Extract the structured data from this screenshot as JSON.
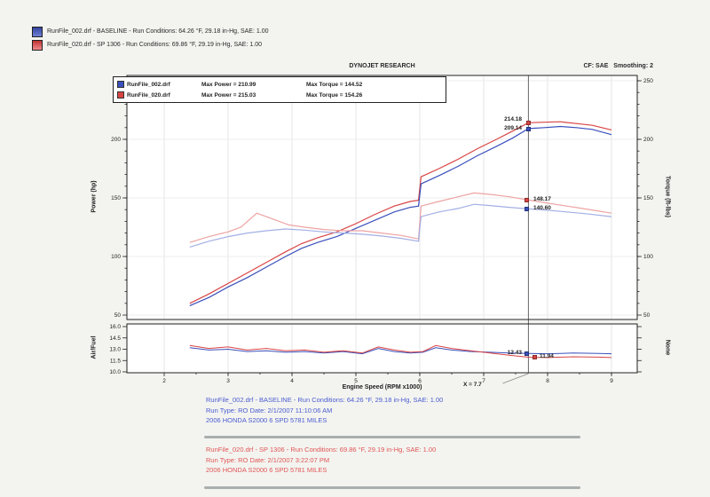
{
  "header": {
    "brand": "DYNOJET RESEARCH",
    "cf": "CF: SAE",
    "smoothing": "Smoothing: 2"
  },
  "page_legend": [
    {
      "color": "#3a50bb",
      "label": "RunFile_002.drf - BASELINE  -  Run Conditions: 64.26 °F, 29.18 in-Hg, SAE: 1.00"
    },
    {
      "color": "#d84444",
      "label": "RunFile_020.drf - SP 1306  -  Run Conditions: 69.86 °F, 29.19 in-Hg, SAE: 1.00"
    }
  ],
  "chart_legend": [
    {
      "file": "RunFile_002.drf",
      "power": "Max Power = 210.99",
      "torque": "Max Torque = 144.52"
    },
    {
      "file": "RunFile_020.drf",
      "power": "Max Power = 215.03",
      "torque": "Max Torque = 154.26"
    }
  ],
  "axis_titles": {
    "power": "Power (hp)",
    "torque": "Torque (ft-lbs)",
    "afr": "Air/Fuel",
    "none": "None",
    "x": "Engine Speed (RPM x1000)"
  },
  "cursor": {
    "label": "X = 7.7",
    "rpm": 7.7,
    "power_red": "214.18",
    "power_blue": "209.14",
    "torque_red": "148.17",
    "torque_blue": "140.60",
    "afr_blue": "12.43",
    "afr_red": "11.94"
  },
  "footer": {
    "blue": [
      "RunFile_002.drf - BASELINE  -  Run Conditions: 64.26 °F, 29.18 in-Hg, SAE: 1.00",
      "Run Type: RO  Date: 2/1/2007 11:10:06 AM",
      "2006 HONDA S2000 6 SPD 5781 MILES"
    ],
    "red": [
      "RunFile_020.drf - SP 1306  -  Run Conditions: 69.86 °F, 29.19 in-Hg, SAE: 1.00",
      "Run Type: RO  Date: 2/1/2007 3:22:07 PM",
      "2006 HONDA S2000 6 SPD 5781 MILES"
    ]
  },
  "chart_data": [
    {
      "type": "line",
      "title": "DYNOJET RESEARCH",
      "xlabel": "Engine Speed (RPM x1000)",
      "ylabel_left": "Power (hp)",
      "ylabel_right": "Torque (ft-lbs)",
      "xlim": [
        1.4,
        9.95
      ],
      "ylim": [
        50,
        255
      ],
      "x_ticks": [
        2,
        3,
        4,
        5,
        6,
        7,
        8,
        9
      ],
      "y_ticks_left": [
        200,
        150,
        100,
        50
      ],
      "y_ticks_right": [
        250,
        200,
        150,
        100,
        50
      ],
      "grid": true,
      "legend_position": "top-left",
      "cursor_x": 7.7,
      "series": [
        {
          "name": "RunFile_020 Power (hp)",
          "color": "#d84444",
          "points": [
            [
              2.4,
              60
            ],
            [
              2.7,
              68
            ],
            [
              3.0,
              77
            ],
            [
              3.3,
              86
            ],
            [
              3.6,
              95
            ],
            [
              3.9,
              104
            ],
            [
              4.15,
              111
            ],
            [
              4.4,
              116
            ],
            [
              4.7,
              121
            ],
            [
              5.0,
              128
            ],
            [
              5.3,
              136
            ],
            [
              5.6,
              143
            ],
            [
              5.85,
              147
            ],
            [
              5.98,
              148
            ],
            [
              6.02,
              168
            ],
            [
              6.3,
              175
            ],
            [
              6.6,
              183
            ],
            [
              6.9,
              192
            ],
            [
              7.2,
              200
            ],
            [
              7.45,
              207
            ],
            [
              7.7,
              214.18
            ],
            [
              7.95,
              214.6
            ],
            [
              8.2,
              215.03
            ],
            [
              8.45,
              213.5
            ],
            [
              8.7,
              212
            ],
            [
              9.0,
              208
            ]
          ]
        },
        {
          "name": "RunFile_002 Power (hp)",
          "color": "#3a50bb",
          "points": [
            [
              2.4,
              58
            ],
            [
              2.7,
              65
            ],
            [
              3.0,
              74
            ],
            [
              3.3,
              82
            ],
            [
              3.6,
              91
            ],
            [
              3.9,
              100
            ],
            [
              4.15,
              107
            ],
            [
              4.4,
              112
            ],
            [
              4.7,
              117
            ],
            [
              5.0,
              124
            ],
            [
              5.3,
              131
            ],
            [
              5.6,
              138
            ],
            [
              5.85,
              142
            ],
            [
              5.98,
              143
            ],
            [
              6.02,
              162
            ],
            [
              6.3,
              169
            ],
            [
              6.6,
              177
            ],
            [
              6.9,
              186
            ],
            [
              7.2,
              194
            ],
            [
              7.45,
              201
            ],
            [
              7.7,
              209.14
            ],
            [
              7.95,
              210
            ],
            [
              8.2,
              210.99
            ],
            [
              8.45,
              210
            ],
            [
              8.7,
              208.5
            ],
            [
              9.0,
              204
            ]
          ]
        },
        {
          "name": "RunFile_020 Torque (ft-lbs)",
          "color": "#eda3a3",
          "points": [
            [
              2.4,
              112
            ],
            [
              2.7,
              117
            ],
            [
              3.0,
              121
            ],
            [
              3.2,
              125
            ],
            [
              3.45,
              137
            ],
            [
              3.7,
              132
            ],
            [
              3.95,
              127
            ],
            [
              4.2,
              125
            ],
            [
              4.5,
              123
            ],
            [
              4.8,
              122
            ],
            [
              5.1,
              122
            ],
            [
              5.4,
              120
            ],
            [
              5.7,
              118
            ],
            [
              5.98,
              115
            ],
            [
              6.02,
              143
            ],
            [
              6.3,
              147
            ],
            [
              6.6,
              151
            ],
            [
              6.85,
              154.26
            ],
            [
              7.1,
              153
            ],
            [
              7.4,
              151
            ],
            [
              7.7,
              148.17
            ],
            [
              8.0,
              145.5
            ],
            [
              8.3,
              143
            ],
            [
              8.6,
              140.5
            ],
            [
              9.0,
              137
            ]
          ]
        },
        {
          "name": "RunFile_002 Torque (ft-lbs)",
          "color": "#a3afe4",
          "points": [
            [
              2.4,
              108
            ],
            [
              2.7,
              113
            ],
            [
              3.0,
              117
            ],
            [
              3.3,
              120
            ],
            [
              3.6,
              122
            ],
            [
              3.9,
              123.5
            ],
            [
              4.2,
              122.5
            ],
            [
              4.5,
              121
            ],
            [
              4.8,
              120
            ],
            [
              5.1,
              119
            ],
            [
              5.4,
              117.5
            ],
            [
              5.7,
              115.5
            ],
            [
              5.98,
              113
            ],
            [
              6.02,
              134
            ],
            [
              6.3,
              138
            ],
            [
              6.6,
              141
            ],
            [
              6.85,
              144.52
            ],
            [
              7.1,
              143.5
            ],
            [
              7.4,
              142
            ],
            [
              7.7,
              140.6
            ],
            [
              8.0,
              139.5
            ],
            [
              8.3,
              138
            ],
            [
              8.6,
              136.5
            ],
            [
              9.0,
              134
            ]
          ]
        }
      ]
    },
    {
      "type": "line",
      "ylabel_left": "Air/Fuel",
      "ylabel_right": "None",
      "xlim": [
        1.4,
        9.95
      ],
      "ylim": [
        10,
        16
      ],
      "y_ticks_left": [
        16.0,
        14.5,
        13.0,
        11.5,
        10.0
      ],
      "grid": true,
      "series": [
        {
          "name": "RunFile_002 Air/Fuel",
          "color": "#3a50bb",
          "points": [
            [
              2.4,
              13.2
            ],
            [
              2.7,
              12.9
            ],
            [
              3.0,
              13.0
            ],
            [
              3.3,
              12.7
            ],
            [
              3.6,
              12.8
            ],
            [
              3.9,
              12.6
            ],
            [
              4.2,
              12.7
            ],
            [
              4.5,
              12.5
            ],
            [
              4.8,
              12.7
            ],
            [
              5.1,
              12.4
            ],
            [
              5.35,
              13.1
            ],
            [
              5.6,
              12.7
            ],
            [
              5.85,
              12.5
            ],
            [
              6.05,
              12.6
            ],
            [
              6.25,
              13.2
            ],
            [
              6.5,
              12.9
            ],
            [
              6.8,
              12.7
            ],
            [
              7.1,
              12.6
            ],
            [
              7.4,
              12.5
            ],
            [
              7.7,
              12.43
            ],
            [
              8.0,
              12.4
            ],
            [
              8.4,
              12.5
            ],
            [
              8.8,
              12.45
            ],
            [
              9.0,
              12.4
            ]
          ]
        },
        {
          "name": "RunFile_020 Air/Fuel",
          "color": "#d84444",
          "points": [
            [
              2.4,
              13.5
            ],
            [
              2.7,
              13.1
            ],
            [
              3.0,
              13.3
            ],
            [
              3.3,
              12.9
            ],
            [
              3.6,
              13.1
            ],
            [
              3.9,
              12.8
            ],
            [
              4.2,
              12.9
            ],
            [
              4.5,
              12.6
            ],
            [
              4.8,
              12.8
            ],
            [
              5.1,
              12.5
            ],
            [
              5.35,
              13.3
            ],
            [
              5.6,
              12.9
            ],
            [
              5.85,
              12.6
            ],
            [
              6.05,
              12.7
            ],
            [
              6.25,
              13.5
            ],
            [
              6.5,
              13.1
            ],
            [
              6.8,
              12.8
            ],
            [
              7.1,
              12.5
            ],
            [
              7.4,
              12.2
            ],
            [
              7.7,
              11.94
            ],
            [
              8.0,
              11.9
            ],
            [
              8.4,
              12.0
            ],
            [
              8.8,
              11.95
            ],
            [
              9.0,
              11.9
            ]
          ]
        }
      ]
    }
  ]
}
